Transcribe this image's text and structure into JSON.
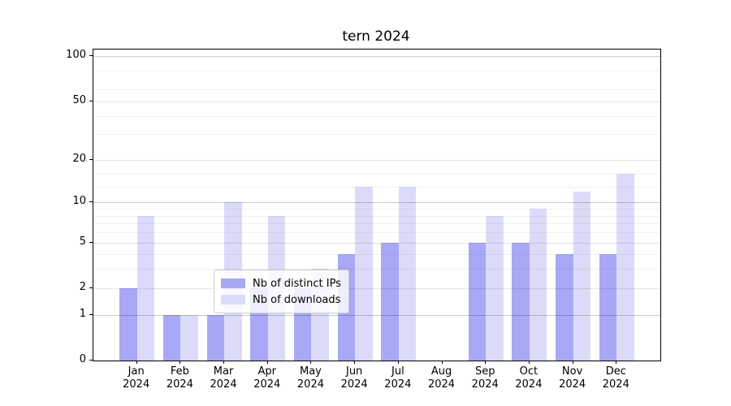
{
  "title": "tern 2024",
  "chart_data": {
    "type": "bar",
    "title": "tern 2024",
    "xlabel": "",
    "ylabel": "",
    "y_scale": "log1p",
    "ylim": [
      0,
      111
    ],
    "grid": true,
    "legend_position": "lower center",
    "categories": [
      "Jan",
      "Feb",
      "Mar",
      "Apr",
      "May",
      "Jun",
      "Jul",
      "Aug",
      "Sep",
      "Oct",
      "Nov",
      "Dec"
    ],
    "category_year": "2024",
    "yticks": [
      0,
      1,
      2,
      5,
      10,
      20,
      50,
      100
    ],
    "series": [
      {
        "name": "Nb of distinct IPs",
        "color": "#a8a8f6",
        "values": [
          2,
          1,
          1,
          2,
          2,
          4,
          5,
          0,
          5,
          5,
          4,
          4
        ]
      },
      {
        "name": "Nb of downloads",
        "color": "#dbdbf9",
        "values": [
          8,
          1,
          10,
          8,
          3,
          13,
          13,
          0,
          8,
          9,
          12,
          16
        ]
      }
    ]
  }
}
